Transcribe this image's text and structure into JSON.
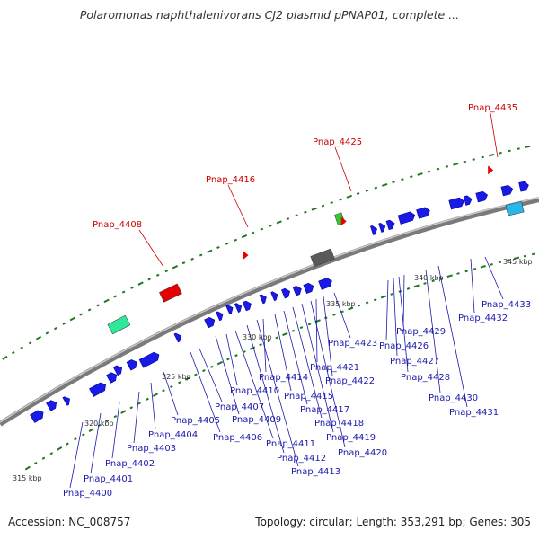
{
  "title": "Polaromonas naphthalenivorans CJ2 plasmid pPNAP01, complete ...",
  "footer": {
    "accession": "Accession: NC_008757",
    "summary": "Topology: circular; Length: 353,291 bp; Genes: 305"
  },
  "colors": {
    "backbone": "#8c8c8c",
    "cds": "#1a1ae6",
    "gene_label": "#1a1aaa",
    "highlight_label": "#cc0000",
    "tick": "#1e7a1e"
  },
  "scale_ticks": [
    "315 kbp",
    "320 kbp",
    "325 kbp",
    "330 kbp",
    "335 kbp",
    "340 kbp",
    "345 kbp"
  ],
  "red_labels": [
    "Pnap_4408",
    "Pnap_4416",
    "Pnap_4425",
    "Pnap_4435"
  ],
  "blue_labels": [
    "Pnap_4400",
    "Pnap_4401",
    "Pnap_4402",
    "Pnap_4403",
    "Pnap_4404",
    "Pnap_4405",
    "Pnap_4406",
    "Pnap_4407",
    "Pnap_4409",
    "Pnap_4410",
    "Pnap_4411",
    "Pnap_4412",
    "Pnap_4413",
    "Pnap_4414",
    "Pnap_4415",
    "Pnap_4417",
    "Pnap_4418",
    "Pnap_4419",
    "Pnap_4420",
    "Pnap_4421",
    "Pnap_4422",
    "Pnap_4423",
    "Pnap_4426",
    "Pnap_4427",
    "Pnap_4428",
    "Pnap_4429",
    "Pnap_4430",
    "Pnap_4431",
    "Pnap_4432",
    "Pnap_4433"
  ]
}
